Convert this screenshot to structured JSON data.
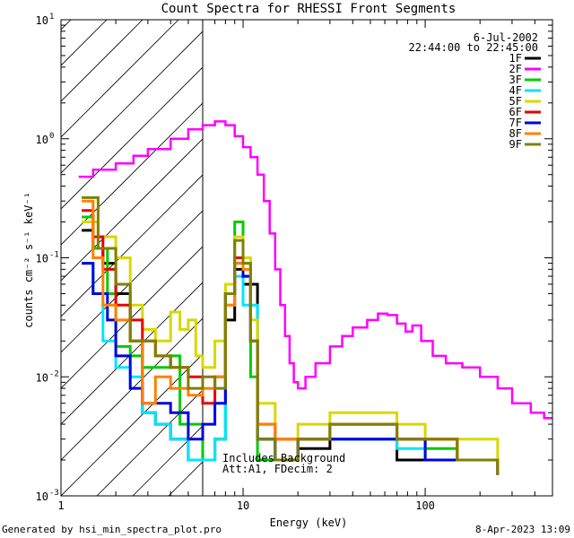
{
  "chart_data": {
    "type": "line",
    "title": "Count Spectra for RHESSI Front Segments",
    "xlabel": "Energy (keV)",
    "ylabel": "counts cm⁻² s⁻¹ keV⁻¹",
    "xscale": "log",
    "yscale": "log",
    "xlim": [
      1,
      500
    ],
    "ylim": [
      0.001,
      10
    ],
    "x_ticks": [
      {
        "value": 1,
        "label": "1"
      },
      {
        "value": 10,
        "label": "10"
      },
      {
        "value": 100,
        "label": "100"
      }
    ],
    "y_ticks": [
      {
        "value": 0.001,
        "label": "10",
        "exp": "-3"
      },
      {
        "value": 0.01,
        "label": "10",
        "exp": "-2"
      },
      {
        "value": 0.1,
        "label": "10",
        "exp": "-1"
      },
      {
        "value": 1,
        "label": "10",
        "exp": "0"
      },
      {
        "value": 10,
        "label": "10",
        "exp": "1"
      }
    ],
    "date": "6-Jul-2002",
    "time_range": "22:44:00 to 22:45:00",
    "attenuator_cutoff_kev": 6,
    "annotation_lines": [
      "Includes Background",
      "Att:A1, FDecim: 2"
    ],
    "legend_location": "top-right",
    "series": [
      {
        "name": "1F",
        "color": "#000000",
        "points": [
          [
            1.3,
            0.17
          ],
          [
            1.5,
            0.12
          ],
          [
            1.7,
            0.09
          ],
          [
            2.0,
            0.05
          ],
          [
            2.4,
            0.02
          ],
          [
            2.8,
            0.005
          ],
          [
            3.3,
            0.004
          ],
          [
            4.0,
            0.003
          ],
          [
            5.0,
            0.002
          ],
          [
            7.0,
            0.003
          ],
          [
            8.0,
            0.03
          ],
          [
            9.0,
            0.08
          ],
          [
            10.0,
            0.06
          ],
          [
            12,
            0.003
          ],
          [
            15,
            0.002
          ],
          [
            20,
            0.0025
          ],
          [
            30,
            0.003
          ],
          [
            45,
            0.003
          ],
          [
            70,
            0.002
          ],
          [
            100,
            0.002
          ],
          [
            150,
            0.002
          ],
          [
            250,
            0.0015
          ]
        ]
      },
      {
        "name": "2F",
        "color": "#ff00ff",
        "points": [
          [
            1.25,
            0.48
          ],
          [
            1.5,
            0.55
          ],
          [
            2.0,
            0.62
          ],
          [
            2.5,
            0.72
          ],
          [
            3.0,
            0.82
          ],
          [
            4.0,
            1.0
          ],
          [
            5.0,
            1.2
          ],
          [
            6.0,
            1.3
          ],
          [
            7.0,
            1.4
          ],
          [
            8.0,
            1.3
          ],
          [
            9.0,
            1.05
          ],
          [
            10,
            0.85
          ],
          [
            11,
            0.7
          ],
          [
            12,
            0.5
          ],
          [
            13,
            0.3
          ],
          [
            14,
            0.16
          ],
          [
            15,
            0.08
          ],
          [
            16,
            0.04
          ],
          [
            17,
            0.022
          ],
          [
            18,
            0.013
          ],
          [
            19,
            0.009
          ],
          [
            20,
            0.008
          ],
          [
            22,
            0.01
          ],
          [
            25,
            0.013
          ],
          [
            30,
            0.018
          ],
          [
            35,
            0.022
          ],
          [
            40,
            0.026
          ],
          [
            48,
            0.03
          ],
          [
            55,
            0.034
          ],
          [
            62,
            0.033
          ],
          [
            70,
            0.028
          ],
          [
            78,
            0.024
          ],
          [
            85,
            0.027
          ],
          [
            95,
            0.02
          ],
          [
            110,
            0.015
          ],
          [
            130,
            0.013
          ],
          [
            160,
            0.012
          ],
          [
            200,
            0.01
          ],
          [
            250,
            0.008
          ],
          [
            300,
            0.006
          ],
          [
            380,
            0.005
          ],
          [
            450,
            0.0045
          ],
          [
            500,
            0.0045
          ]
        ]
      },
      {
        "name": "3F",
        "color": "#00cc00",
        "points": [
          [
            1.3,
            0.22
          ],
          [
            1.5,
            0.12
          ],
          [
            1.8,
            0.05
          ],
          [
            2.0,
            0.018
          ],
          [
            2.4,
            0.015
          ],
          [
            2.8,
            0.012
          ],
          [
            3.3,
            0.012
          ],
          [
            4.0,
            0.015
          ],
          [
            4.5,
            0.004
          ],
          [
            5.0,
            0.004
          ],
          [
            6.0,
            0.002
          ],
          [
            7.0,
            0.003
          ],
          [
            8.0,
            0.05
          ],
          [
            9.0,
            0.2
          ],
          [
            10,
            0.09
          ],
          [
            11,
            0.01
          ],
          [
            12,
            0.002
          ],
          [
            15,
            0.002
          ],
          [
            20,
            0.003
          ],
          [
            30,
            0.004
          ],
          [
            45,
            0.004
          ],
          [
            70,
            0.003
          ],
          [
            100,
            0.0025
          ],
          [
            150,
            0.002
          ],
          [
            250,
            0.0015
          ]
        ]
      },
      {
        "name": "4F",
        "color": "#00e5ff",
        "points": [
          [
            1.3,
            0.09
          ],
          [
            1.5,
            0.05
          ],
          [
            1.7,
            0.02
          ],
          [
            2.0,
            0.012
          ],
          [
            2.4,
            0.01
          ],
          [
            2.8,
            0.005
          ],
          [
            3.3,
            0.004
          ],
          [
            4.0,
            0.003
          ],
          [
            5.0,
            0.002
          ],
          [
            7.0,
            0.003
          ],
          [
            8.0,
            0.04
          ],
          [
            9.0,
            0.07
          ],
          [
            10,
            0.04
          ],
          [
            12,
            0.003
          ],
          [
            15,
            0.002
          ],
          [
            20,
            0.003
          ],
          [
            30,
            0.003
          ],
          [
            45,
            0.003
          ],
          [
            70,
            0.0025
          ],
          [
            100,
            0.002
          ],
          [
            150,
            0.002
          ],
          [
            250,
            0.0015
          ]
        ]
      },
      {
        "name": "5F",
        "color": "#d8d800",
        "points": [
          [
            1.3,
            0.2
          ],
          [
            1.6,
            0.15
          ],
          [
            2.0,
            0.1
          ],
          [
            2.4,
            0.04
          ],
          [
            2.8,
            0.025
          ],
          [
            3.3,
            0.02
          ],
          [
            4.0,
            0.035
          ],
          [
            4.5,
            0.025
          ],
          [
            5.0,
            0.03
          ],
          [
            5.5,
            0.015
          ],
          [
            6.0,
            0.012
          ],
          [
            7.0,
            0.02
          ],
          [
            8.0,
            0.06
          ],
          [
            9.0,
            0.15
          ],
          [
            10,
            0.1
          ],
          [
            11,
            0.03
          ],
          [
            12,
            0.006
          ],
          [
            15,
            0.003
          ],
          [
            20,
            0.004
          ],
          [
            30,
            0.005
          ],
          [
            45,
            0.005
          ],
          [
            70,
            0.004
          ],
          [
            100,
            0.003
          ],
          [
            150,
            0.003
          ],
          [
            250,
            0.002
          ]
        ]
      },
      {
        "name": "6F",
        "color": "#e80000",
        "points": [
          [
            1.3,
            0.25
          ],
          [
            1.5,
            0.15
          ],
          [
            1.7,
            0.08
          ],
          [
            2.0,
            0.04
          ],
          [
            2.4,
            0.03
          ],
          [
            2.8,
            0.02
          ],
          [
            3.3,
            0.015
          ],
          [
            4.0,
            0.012
          ],
          [
            5.0,
            0.01
          ],
          [
            6.0,
            0.006
          ],
          [
            7.0,
            0.01
          ],
          [
            8.0,
            0.05
          ],
          [
            9.0,
            0.1
          ],
          [
            10,
            0.07
          ],
          [
            11,
            0.02
          ],
          [
            12,
            0.004
          ],
          [
            15,
            0.003
          ],
          [
            20,
            0.003
          ],
          [
            30,
            0.004
          ],
          [
            45,
            0.004
          ],
          [
            70,
            0.003
          ],
          [
            100,
            0.003
          ],
          [
            150,
            0.002
          ],
          [
            250,
            0.0015
          ]
        ]
      },
      {
        "name": "7F",
        "color": "#0000e0",
        "points": [
          [
            1.3,
            0.09
          ],
          [
            1.5,
            0.05
          ],
          [
            1.8,
            0.03
          ],
          [
            2.0,
            0.015
          ],
          [
            2.4,
            0.008
          ],
          [
            2.8,
            0.006
          ],
          [
            3.3,
            0.006
          ],
          [
            4.0,
            0.005
          ],
          [
            5.0,
            0.003
          ],
          [
            6.0,
            0.004
          ],
          [
            7.0,
            0.006
          ],
          [
            8.0,
            0.05
          ],
          [
            9.0,
            0.09
          ],
          [
            10,
            0.07
          ],
          [
            11,
            0.02
          ],
          [
            12,
            0.003
          ],
          [
            15,
            0.002
          ],
          [
            20,
            0.003
          ],
          [
            30,
            0.003
          ],
          [
            45,
            0.003
          ],
          [
            70,
            0.003
          ],
          [
            100,
            0.002
          ],
          [
            150,
            0.002
          ],
          [
            250,
            0.0015
          ]
        ]
      },
      {
        "name": "8F",
        "color": "#ff8000",
        "points": [
          [
            1.3,
            0.3
          ],
          [
            1.5,
            0.1
          ],
          [
            1.7,
            0.04
          ],
          [
            2.0,
            0.03
          ],
          [
            2.4,
            0.02
          ],
          [
            2.8,
            0.006
          ],
          [
            3.3,
            0.01
          ],
          [
            4.0,
            0.008
          ],
          [
            5.0,
            0.007
          ],
          [
            6.0,
            0.008
          ],
          [
            7.0,
            0.01
          ],
          [
            8.0,
            0.04
          ],
          [
            9.0,
            0.09
          ],
          [
            10,
            0.08
          ],
          [
            11,
            0.02
          ],
          [
            12,
            0.004
          ],
          [
            15,
            0.003
          ],
          [
            20,
            0.003
          ],
          [
            30,
            0.004
          ],
          [
            45,
            0.004
          ],
          [
            70,
            0.003
          ],
          [
            100,
            0.003
          ],
          [
            150,
            0.002
          ],
          [
            250,
            0.0015
          ]
        ]
      },
      {
        "name": "9F",
        "color": "#808000",
        "points": [
          [
            1.3,
            0.32
          ],
          [
            1.6,
            0.12
          ],
          [
            2.0,
            0.06
          ],
          [
            2.4,
            0.02
          ],
          [
            2.8,
            0.02
          ],
          [
            3.3,
            0.015
          ],
          [
            4.0,
            0.012
          ],
          [
            5.0,
            0.008
          ],
          [
            6.0,
            0.01
          ],
          [
            7.0,
            0.008
          ],
          [
            8.0,
            0.05
          ],
          [
            9.0,
            0.14
          ],
          [
            10,
            0.09
          ],
          [
            11,
            0.02
          ],
          [
            12,
            0.003
          ],
          [
            15,
            0.002
          ],
          [
            20,
            0.003
          ],
          [
            30,
            0.004
          ],
          [
            45,
            0.004
          ],
          [
            70,
            0.003
          ],
          [
            100,
            0.003
          ],
          [
            150,
            0.002
          ],
          [
            250,
            0.0015
          ]
        ]
      }
    ]
  },
  "footer": {
    "generator": "Generated by hsi_min_spectra_plot.pro",
    "timestamp": "8-Apr-2023 13:09"
  }
}
